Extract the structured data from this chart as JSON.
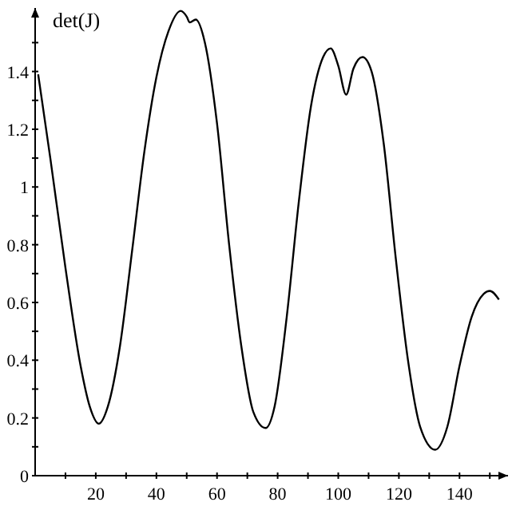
{
  "chart_data": {
    "type": "line",
    "ylabel": "det(J)",
    "color": "#000000",
    "x": [
      1,
      5,
      10,
      15,
      18,
      21,
      24,
      28,
      32,
      36,
      40,
      44,
      48,
      50,
      51,
      53,
      56,
      60,
      64,
      68,
      72,
      76,
      79,
      83,
      87,
      91,
      95,
      97.5,
      100,
      102.6,
      105,
      108,
      111,
      115,
      119,
      123,
      127,
      132,
      136,
      140,
      144,
      148,
      150,
      153
    ],
    "values": [
      1.39,
      1.1,
      0.72,
      0.38,
      0.24,
      0.18,
      0.24,
      0.45,
      0.78,
      1.12,
      1.38,
      1.54,
      1.61,
      1.59,
      1.57,
      1.58,
      1.5,
      1.22,
      0.8,
      0.45,
      0.22,
      0.165,
      0.24,
      0.55,
      0.95,
      1.28,
      1.45,
      1.48,
      1.42,
      1.32,
      1.41,
      1.45,
      1.4,
      1.15,
      0.75,
      0.4,
      0.17,
      0.09,
      0.17,
      0.38,
      0.55,
      0.63,
      0.64,
      0.61
    ],
    "xlim": [
      0,
      156
    ],
    "ylim": [
      0,
      1.62
    ],
    "xticks": [
      {
        "value": 10,
        "label": null
      },
      20,
      {
        "value": 30,
        "label": null
      },
      40,
      {
        "value": 50,
        "label": null
      },
      60,
      {
        "value": 70,
        "label": null
      },
      80,
      {
        "value": 90,
        "label": null
      },
      100,
      {
        "value": 110,
        "label": null
      },
      120,
      {
        "value": 130,
        "label": null
      },
      140,
      {
        "value": 150,
        "label": null
      }
    ],
    "yticks": [
      0,
      {
        "value": 0.1,
        "label": null
      },
      0.2,
      {
        "value": 0.3,
        "label": null
      },
      0.4,
      {
        "value": 0.5,
        "label": null
      },
      0.6,
      {
        "value": 0.7,
        "label": null
      },
      0.8,
      {
        "value": 0.9,
        "label": null
      },
      1,
      {
        "value": 1.1,
        "label": null
      },
      1.2,
      {
        "value": 1.3,
        "label": null
      },
      1.4,
      {
        "value": 1.5,
        "label": null
      }
    ],
    "grid": false,
    "marker": "none",
    "line_style": "solid"
  }
}
